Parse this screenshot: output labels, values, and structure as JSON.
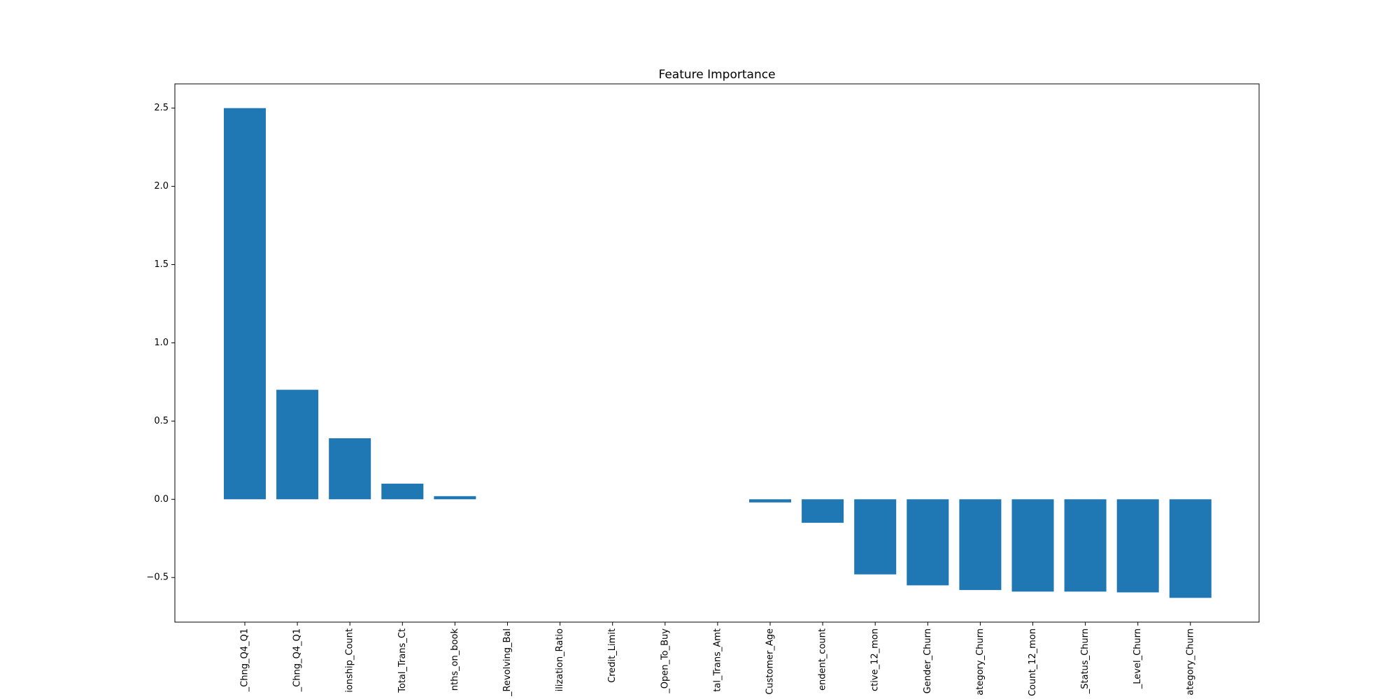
{
  "colors": {
    "bar": "#1f77b4",
    "axis": "#000000",
    "background": "#ffffff"
  },
  "chart_data": {
    "type": "bar",
    "title": "Feature Importance",
    "xlabel": "",
    "ylabel": "",
    "grid": false,
    "ylim": [
      -0.785,
      2.655
    ],
    "yticks": [
      -0.5,
      0.0,
      0.5,
      1.0,
      1.5,
      2.0,
      2.5
    ],
    "ytick_labels": [
      "−0.5",
      "0.0",
      "0.5",
      "1.0",
      "1.5",
      "2.0",
      "2.5"
    ],
    "categories": [
      "_Chng_Q4_Q1",
      "_Chng_Q4_Q1",
      "ionship_Count",
      "Total_Trans_Ct",
      "nths_on_book",
      "_Revolving_Bal",
      "ilization_Ratio",
      "Credit_Limit",
      "_Open_To_Buy",
      "tal_Trans_Amt",
      "Customer_Age",
      "endent_count",
      "ctive_12_mon",
      "Gender_Churn",
      "ategory_Churn",
      "Count_12_mon",
      "_Status_Churn",
      "_Level_Churn",
      "ategory_Churn"
    ],
    "values": [
      2.5,
      0.7,
      0.39,
      0.1,
      0.02,
      0.0,
      0.0,
      0.0,
      0.0,
      0.0,
      -0.02,
      -0.15,
      -0.48,
      -0.55,
      -0.58,
      -0.59,
      -0.59,
      -0.595,
      -0.63
    ]
  }
}
